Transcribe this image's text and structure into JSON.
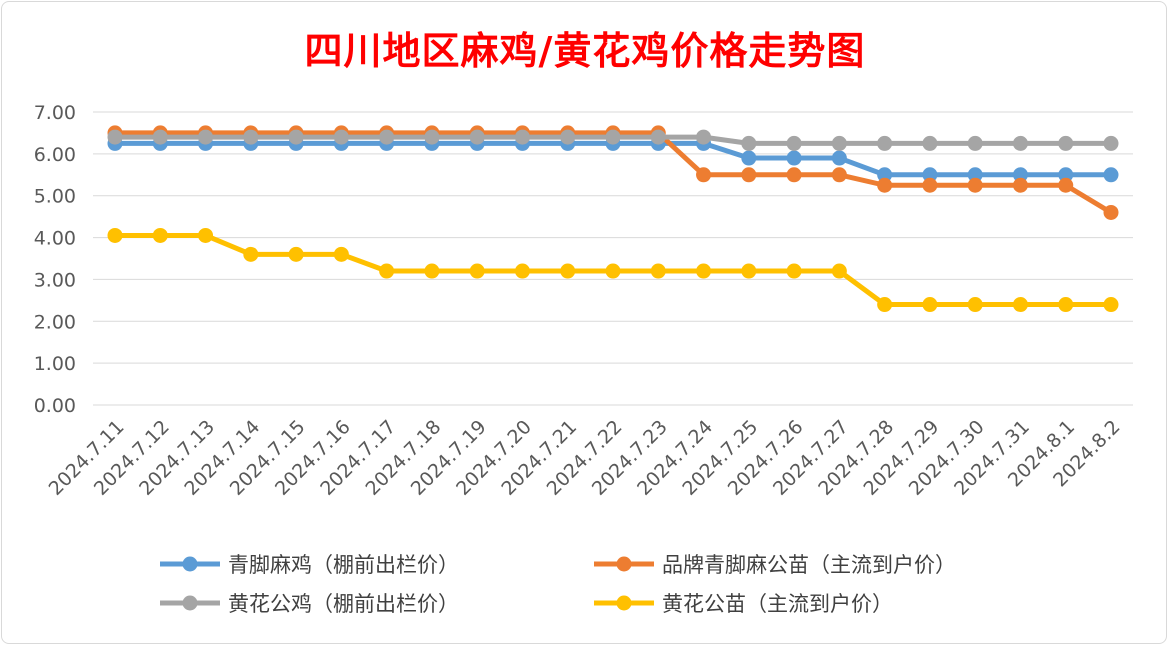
{
  "chart_data": {
    "type": "line",
    "title": "四川地区麻鸡/黄花鸡价格走势图",
    "categories": [
      "2024.7.11",
      "2024.7.12",
      "2024.7.13",
      "2024.7.14",
      "2024.7.15",
      "2024.7.16",
      "2024.7.17",
      "2024.7.18",
      "2024.7.19",
      "2024.7.20",
      "2024.7.21",
      "2024.7.22",
      "2024.7.23",
      "2024.7.24",
      "2024.7.25",
      "2024.7.26",
      "2024.7.27",
      "2024.7.28",
      "2024.7.29",
      "2024.7.30",
      "2024.7.31",
      "2024.8.1",
      "2024.8.2"
    ],
    "yticks": [
      "0.00",
      "1.00",
      "2.00",
      "3.00",
      "4.00",
      "5.00",
      "6.00",
      "7.00"
    ],
    "ylim": [
      0,
      7
    ],
    "grid": true,
    "legend_position": "bottom",
    "series": [
      {
        "name": "青脚麻鸡（棚前出栏价）",
        "color": "#5b9bd5",
        "values": [
          6.25,
          6.25,
          6.25,
          6.25,
          6.25,
          6.25,
          6.25,
          6.25,
          6.25,
          6.25,
          6.25,
          6.25,
          6.25,
          6.25,
          5.9,
          5.9,
          5.9,
          5.5,
          5.5,
          5.5,
          5.5,
          5.5,
          5.5
        ]
      },
      {
        "name": "品牌青脚麻公苗（主流到户价）",
        "color": "#ed7d31",
        "values": [
          6.5,
          6.5,
          6.5,
          6.5,
          6.5,
          6.5,
          6.5,
          6.5,
          6.5,
          6.5,
          6.5,
          6.5,
          6.5,
          5.5,
          5.5,
          5.5,
          5.5,
          5.25,
          5.25,
          5.25,
          5.25,
          5.25,
          4.6
        ]
      },
      {
        "name": "黄花公鸡（棚前出栏价）",
        "color": "#a5a5a5",
        "values": [
          6.4,
          6.4,
          6.4,
          6.4,
          6.4,
          6.4,
          6.4,
          6.4,
          6.4,
          6.4,
          6.4,
          6.4,
          6.4,
          6.4,
          6.25,
          6.25,
          6.25,
          6.25,
          6.25,
          6.25,
          6.25,
          6.25,
          6.25
        ]
      },
      {
        "name": "黄花公苗（主流到户价）",
        "color": "#ffc000",
        "values": [
          4.05,
          4.05,
          4.05,
          3.6,
          3.6,
          3.6,
          3.2,
          3.2,
          3.2,
          3.2,
          3.2,
          3.2,
          3.2,
          3.2,
          3.2,
          3.2,
          3.2,
          2.4,
          2.4,
          2.4,
          2.4,
          2.4,
          2.4
        ]
      }
    ]
  }
}
